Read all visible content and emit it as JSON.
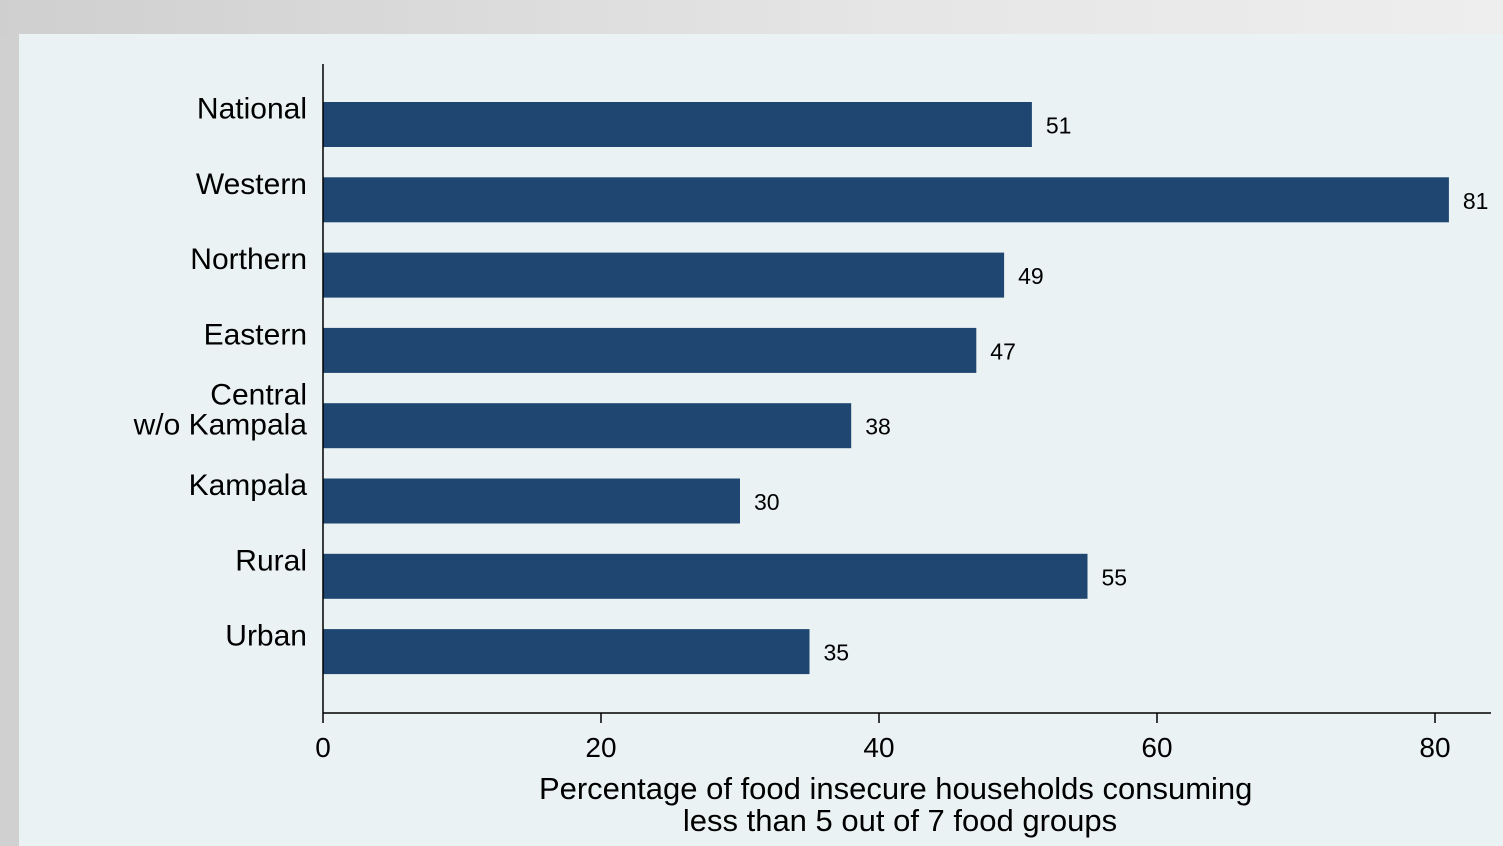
{
  "chart_data": {
    "type": "bar",
    "orientation": "horizontal",
    "categories": [
      "National",
      "Western",
      "Northern",
      "Eastern",
      "Central\nw/o Kampala",
      "Kampala",
      "Rural",
      "Urban"
    ],
    "values": [
      51,
      81,
      49,
      47,
      38,
      30,
      55,
      35
    ],
    "value_labels": [
      "51",
      "81",
      "49",
      "47",
      "38",
      "30",
      "55",
      "35"
    ],
    "xlabel_lines": [
      "Percentage of food insecure households consuming",
      "less than 5 out of 7 food groups"
    ],
    "ylabel": "",
    "xlim": [
      0,
      83
    ],
    "xticks": [
      0,
      20,
      40,
      60,
      80
    ],
    "xtick_labels": [
      "0",
      "20",
      "40",
      "60",
      "80"
    ],
    "grid": false,
    "bar_color": "#1e4670",
    "background_color": "#eaf2f3"
  }
}
